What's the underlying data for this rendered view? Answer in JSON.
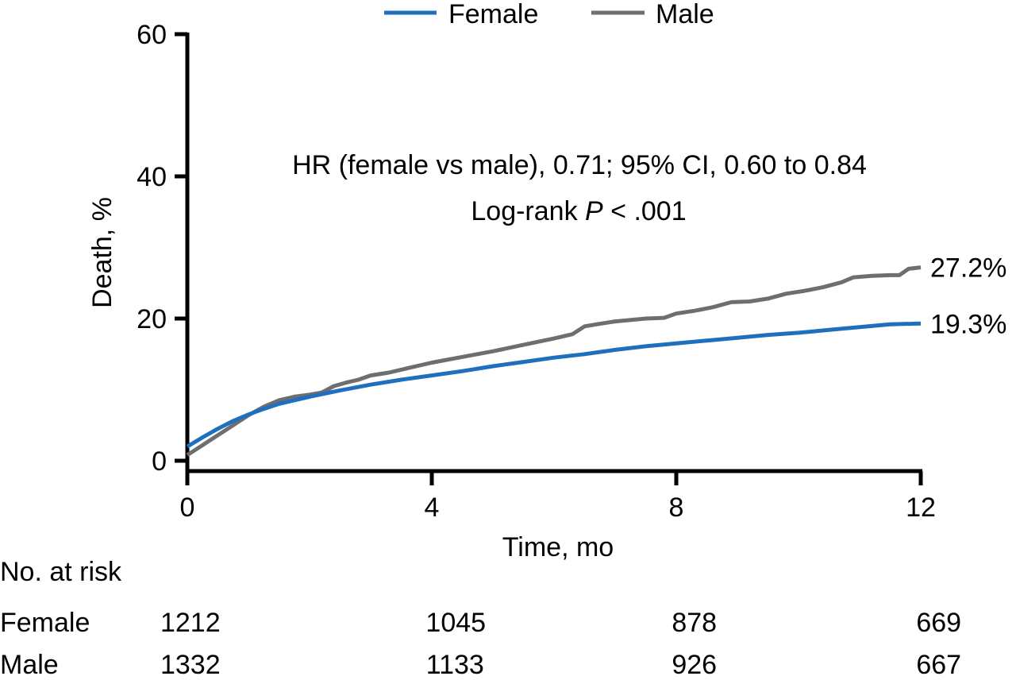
{
  "chart_data": {
    "type": "line",
    "title": "",
    "xlabel": "Time, mo",
    "ylabel": "Death, %",
    "xlim": [
      0,
      12
    ],
    "ylim": [
      0,
      60
    ],
    "xticks": [
      0,
      4,
      8,
      12
    ],
    "yticks": [
      0,
      20,
      40,
      60
    ],
    "grid": false,
    "legend": {
      "placement": "top-center",
      "entries": [
        "Female",
        "Male"
      ]
    },
    "annotations": [
      "HR (female vs male), 0.71; 95% CI, 0.60 to 0.84",
      "Log-rank P < .001"
    ],
    "annotation_parts": {
      "prefix": "Log-rank ",
      "italic": "P",
      "suffix": " < .001"
    },
    "series": [
      {
        "name": "Female",
        "color": "#1f6fbf",
        "end_label": "19.3%",
        "x": [
          0,
          0.25,
          0.5,
          0.75,
          1,
          1.25,
          1.5,
          2,
          2.5,
          3,
          3.5,
          4,
          4.5,
          5,
          5.5,
          6,
          6.5,
          7,
          7.5,
          8,
          8.5,
          9,
          9.5,
          10,
          10.5,
          11,
          11.5,
          12
        ],
        "values": [
          2.0,
          3.3,
          4.5,
          5.6,
          6.5,
          7.3,
          8.0,
          9.0,
          9.9,
          10.7,
          11.4,
          12.0,
          12.6,
          13.3,
          13.9,
          14.5,
          15.0,
          15.6,
          16.1,
          16.5,
          16.9,
          17.3,
          17.7,
          18.0,
          18.4,
          18.8,
          19.2,
          19.3
        ]
      },
      {
        "name": "Male",
        "color": "#6e6e70",
        "end_label": "27.2%",
        "x": [
          0,
          0.25,
          0.5,
          0.75,
          1,
          1.25,
          1.5,
          1.75,
          2,
          2.2,
          2.4,
          2.6,
          2.8,
          3,
          3.3,
          3.6,
          4,
          4.5,
          5,
          5.5,
          6,
          6.3,
          6.5,
          6.7,
          7,
          7.5,
          7.8,
          8,
          8.3,
          8.6,
          8.9,
          9.2,
          9.5,
          9.8,
          10.1,
          10.4,
          10.7,
          10.9,
          11.2,
          11.5,
          11.65,
          11.8,
          12
        ],
        "values": [
          0.8,
          2.2,
          3.6,
          5.0,
          6.4,
          7.6,
          8.5,
          9.0,
          9.3,
          9.6,
          10.5,
          11.0,
          11.4,
          12.0,
          12.4,
          13.0,
          13.8,
          14.6,
          15.4,
          16.3,
          17.2,
          17.8,
          18.9,
          19.2,
          19.6,
          20.0,
          20.1,
          20.7,
          21.1,
          21.6,
          22.3,
          22.4,
          22.8,
          23.5,
          23.9,
          24.4,
          25.1,
          25.8,
          26.0,
          26.1,
          26.1,
          27.0,
          27.2
        ]
      }
    ],
    "risk_table": {
      "title": "No. at risk",
      "timepoints": [
        0,
        4,
        8,
        12
      ],
      "rows": [
        {
          "label": "Female",
          "values": [
            "1212",
            "1045",
            "878",
            "669"
          ]
        },
        {
          "label": "Male",
          "values": [
            "1332",
            "1133",
            "926",
            "667"
          ]
        }
      ]
    }
  }
}
